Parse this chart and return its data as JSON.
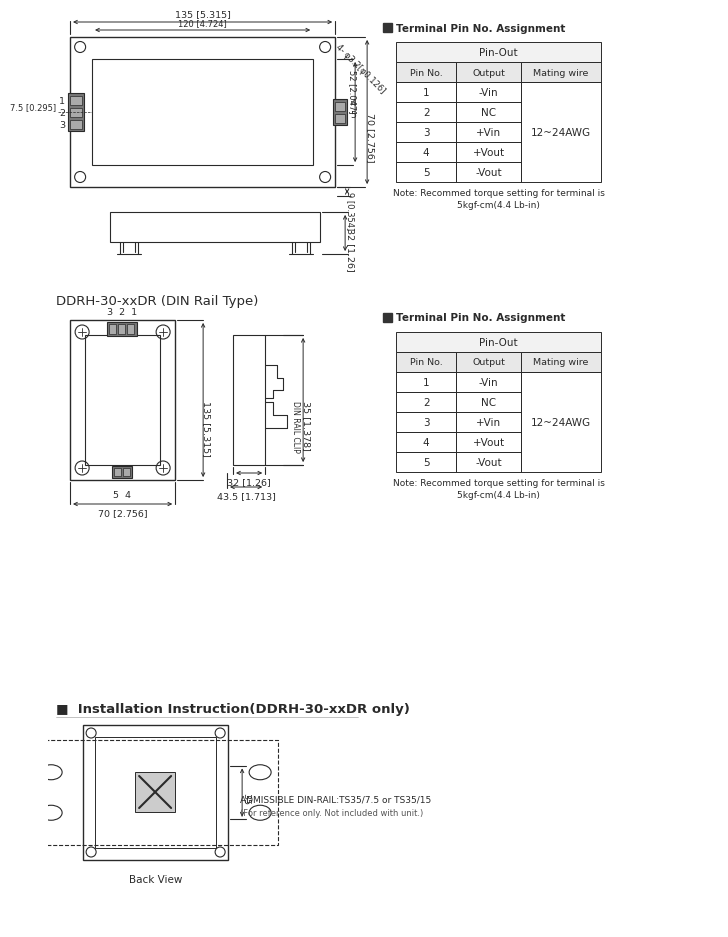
{
  "bg_color": "#ffffff",
  "title_din": "DDRH-30-xxDR (DIN Rail Type)",
  "title_install": "■  Installation Instruction(DDRH-30-xxDR only)",
  "terminal_title": "■  Terminal Pin No. Assignment",
  "note_text1": "Note: Recommed torque setting for terminal is",
  "note_text2": "5kgf-cm(4.4 Lb-in)",
  "admissible1": "ADMISSIBLE DIN-RAIL:TS35/7.5 or TS35/15",
  "admissible2": "(For reference only. Not included with unit.)",
  "back_view": "Back View",
  "pin_out": "Pin-Out",
  "col_headers": [
    "Pin No.",
    "Output",
    "Mating wire"
  ],
  "pin_data": [
    [
      "1",
      "-Vin"
    ],
    [
      "2",
      "NC"
    ],
    [
      "3",
      "+Vin"
    ],
    [
      "4",
      "+Vout"
    ],
    [
      "5",
      "-Vout"
    ]
  ],
  "mating_wire": "12~24AWG",
  "dim_labels": {
    "w135": "135 [5.315]",
    "w120": "120 [4.724]",
    "h70": "70 [2.756]",
    "h52": "52 [2.047]",
    "hole": "4- φ3.2[φ0.126]",
    "d9": "9 [0.354]",
    "d32": "32 [1.26]",
    "din_135": "135 [5.315]",
    "din_70": "70 [2.756]",
    "sv_35": "35 [1.378]",
    "sv_32": "32 [1.26]",
    "sv_435": "43.5 [1.713]",
    "d35": "35",
    "p321": "3  2  1",
    "p54": "5  4",
    "din_rail_clip": "DIN RAIL CLIP"
  },
  "lc": "#2a2a2a",
  "gray_dark": "#666666",
  "gray_med": "#999999",
  "table_header_bg": "#f2f2f2",
  "table_subhdr_bg": "#e8e8e8"
}
